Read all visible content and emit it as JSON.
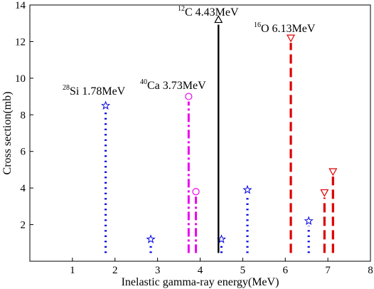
{
  "chart_data": {
    "type": "line",
    "xlabel": "Inelastic gamma-ray energy(MeV)",
    "ylabel": "Cross section(mb)",
    "xlim": [
      0,
      8
    ],
    "ylim": [
      0,
      14
    ],
    "x_ticks": [
      1,
      2,
      3,
      4,
      5,
      6,
      7,
      8
    ],
    "y_ticks": [
      2,
      4,
      6,
      8,
      10,
      12,
      14
    ],
    "grid": false,
    "series": [
      {
        "nuclide": "28Si",
        "color": "#0000dd",
        "line_style": "dotted",
        "marker": "star-icon",
        "x": [
          1.78,
          2.84,
          4.5,
          5.11,
          6.55
        ],
        "y": [
          8.5,
          1.2,
          1.2,
          3.9,
          2.2
        ]
      },
      {
        "nuclide": "40Ca",
        "color": "#ee00ee",
        "line_style": "dash-dot",
        "marker": "circle-icon",
        "x": [
          3.73,
          3.9
        ],
        "y": [
          9.0,
          3.8
        ]
      },
      {
        "nuclide": "12C",
        "color": "#000000",
        "line_style": "solid",
        "marker": "triangle-up-icon",
        "x": [
          4.43
        ],
        "y": [
          13.2
        ]
      },
      {
        "nuclide": "16O",
        "color": "#dd0000",
        "line_style": "dashed",
        "marker": "triangle-down-icon",
        "x": [
          6.13,
          6.92,
          7.12
        ],
        "y": [
          12.2,
          3.75,
          4.9
        ]
      }
    ],
    "annotations": [
      {
        "mass": "28",
        "text": "Si 1.78MeV",
        "x": 1.78
      },
      {
        "mass": "40",
        "text": "Ca 3.73MeV",
        "x": 3.73
      },
      {
        "mass": "12",
        "text": "C 4.43MeV",
        "x": 4.43
      },
      {
        "mass": "16",
        "text": "O 6.13MeV",
        "x": 6.13
      }
    ]
  }
}
